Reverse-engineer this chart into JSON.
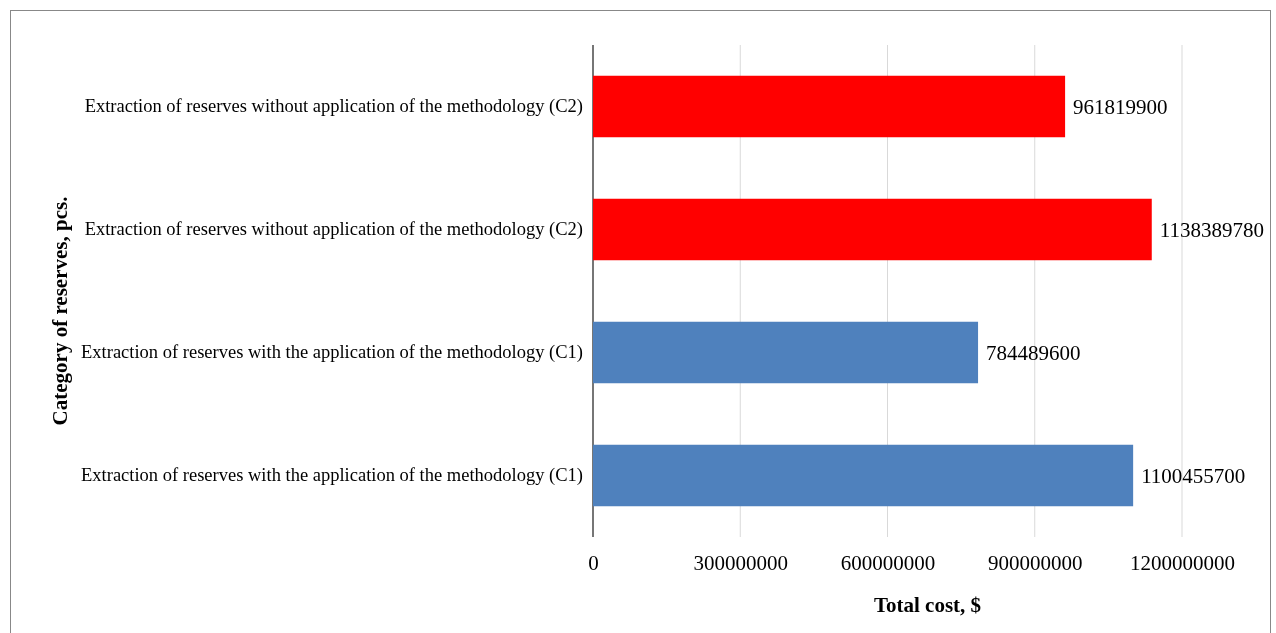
{
  "chart_data": {
    "type": "bar",
    "orientation": "horizontal",
    "categories": [
      "Extraction of reserves without application of the methodology (C2)",
      "Extraction of reserves without application of the methodology (C2)",
      "Extraction of reserves with the application of the methodology (C1)",
      "Extraction of reserves with the application of the methodology (C1)"
    ],
    "values": [
      961819900,
      1138389780,
      784489600,
      1100455700
    ],
    "colors": [
      "#ff0000",
      "#ff0000",
      "#4f81bd",
      "#4f81bd"
    ],
    "xlim": [
      0,
      1200000000
    ],
    "xticks": [
      0,
      300000000,
      600000000,
      900000000,
      1200000000
    ],
    "xlabel": "Total cost, $",
    "ylabel": "Category of reserves, pcs.",
    "grid": "x",
    "data_labels": true
  }
}
